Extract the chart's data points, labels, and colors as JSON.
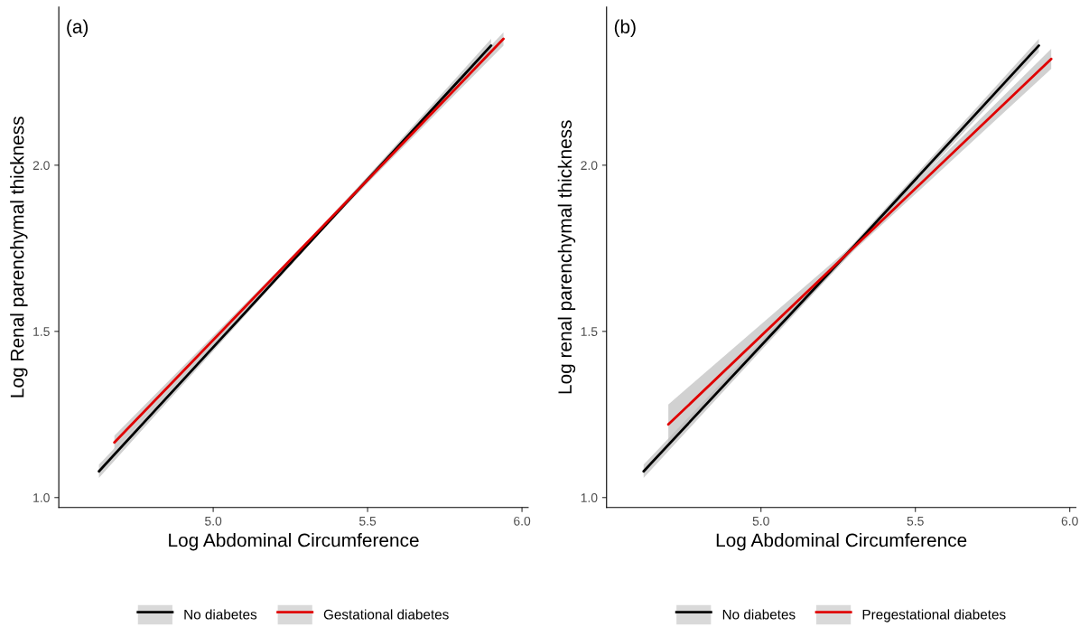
{
  "chart_data": [
    {
      "type": "line",
      "xlabel": "Log Abdominal Circumference",
      "ylabel": "Log Renal parenchymal thickness",
      "annotations": [
        "(a)"
      ],
      "xlim": [
        4.5,
        6.02
      ],
      "xticks": [
        {
          "value": 5,
          "label": "5.0"
        },
        {
          "value": 5.5,
          "label": "5.5"
        },
        {
          "value": 6,
          "label": "6.0"
        }
      ],
      "ylim": [
        0.97,
        2.476
      ],
      "yticks": [
        {
          "value": 1,
          "label": "1.0"
        },
        {
          "value": 1.5,
          "label": "1.5"
        },
        {
          "value": 2,
          "label": "2.0"
        }
      ],
      "grid": false,
      "legend": "bottom",
      "series": [
        {
          "name": "No diabetes",
          "color": "#000000",
          "x": [
            4.63,
            5.3,
            5.9
          ],
          "values": [
            1.079,
            1.755,
            2.36
          ],
          "lower": [
            1.059,
            1.75,
            2.34
          ],
          "upper": [
            1.099,
            1.76,
            2.38
          ]
        },
        {
          "name": "Gestational diabetes",
          "color": "#e00000",
          "x": [
            4.68,
            5.3,
            5.94
          ],
          "values": [
            1.166,
            1.763,
            2.38
          ],
          "lower": [
            1.146,
            1.758,
            2.36
          ],
          "upper": [
            1.186,
            1.768,
            2.4
          ]
        }
      ]
    },
    {
      "type": "line",
      "xlabel": "Log Abdominal Circumference",
      "ylabel": "Log renal parenchymal thickness",
      "annotations": [
        "(b)"
      ],
      "xlim": [
        4.5,
        6.02
      ],
      "xticks": [
        {
          "value": 5,
          "label": "5.0"
        },
        {
          "value": 5.5,
          "label": "5.5"
        },
        {
          "value": 6,
          "label": "6.0"
        }
      ],
      "ylim": [
        0.97,
        2.476
      ],
      "yticks": [
        {
          "value": 1,
          "label": "1.0"
        },
        {
          "value": 1.5,
          "label": "1.5"
        },
        {
          "value": 2,
          "label": "2.0"
        }
      ],
      "grid": false,
      "legend": "bottom",
      "series": [
        {
          "name": "No diabetes",
          "color": "#000000",
          "x": [
            4.62,
            5.3,
            5.9
          ],
          "values": [
            1.079,
            1.755,
            2.36
          ],
          "lower": [
            1.059,
            1.745,
            2.34
          ],
          "upper": [
            1.099,
            1.765,
            2.38
          ]
        },
        {
          "name": "Pregestational diabetes",
          "color": "#e00000",
          "x": [
            4.7,
            5.3,
            5.94
          ],
          "values": [
            1.22,
            1.752,
            2.32
          ],
          "lower": [
            1.16,
            1.742,
            2.29
          ],
          "upper": [
            1.28,
            1.762,
            2.35
          ]
        }
      ]
    }
  ]
}
